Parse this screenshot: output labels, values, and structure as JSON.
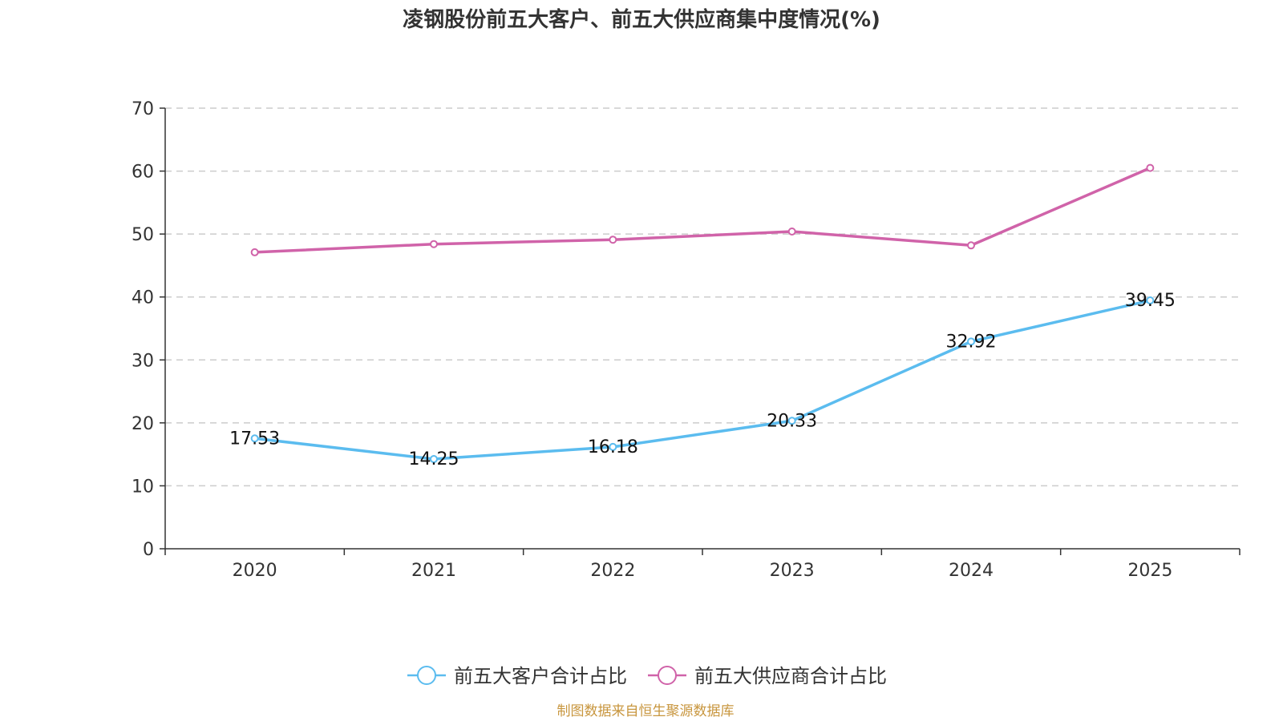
{
  "chart_data": {
    "type": "line",
    "title": "凌钢股份前五大客户、前五大供应商集中度情况(%)",
    "categories": [
      "2020",
      "2021",
      "2022",
      "2023",
      "2024",
      "2025"
    ],
    "y_ticks": [
      "0",
      "10",
      "20",
      "30",
      "40",
      "50",
      "60",
      "70"
    ],
    "ylim": [
      0,
      70
    ],
    "grid": "dashed horizontal",
    "legend_position": "bottom-center",
    "series": [
      {
        "name": "前五大客户合计占比",
        "color": "#5bbcef",
        "values": [
          17.53,
          14.25,
          16.18,
          20.33,
          32.92,
          39.45
        ],
        "labels": [
          "17.53",
          "14.25",
          "16.18",
          "20.33",
          "32.92",
          "39.45"
        ],
        "show_labels": true
      },
      {
        "name": "前五大供应商合计占比",
        "color": "#d063a9",
        "values": [
          47.1,
          48.4,
          49.1,
          50.4,
          48.2,
          60.5
        ],
        "show_labels": false
      }
    ]
  },
  "source": {
    "text": "制图数据来自恒生聚源数据库",
    "color": "#c8963e"
  }
}
